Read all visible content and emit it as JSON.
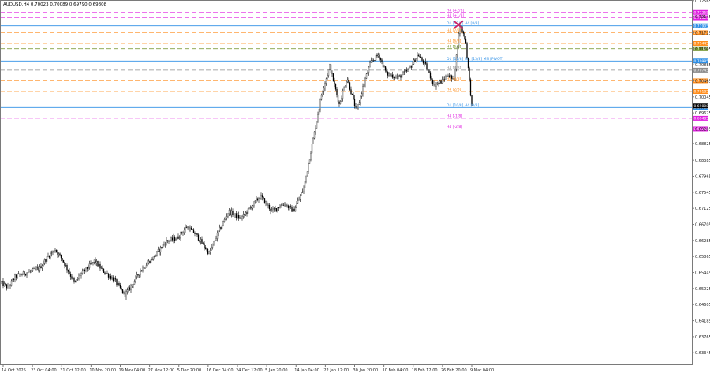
{
  "header": {
    "symbol_info": "AUDUSD,H4  0.70023 0.70089 0.69790 0.69808"
  },
  "colors": {
    "background": "#ffffff",
    "frame": "#7a7a7a",
    "bull_candle": "#000000",
    "bear_candle": "#000000",
    "blue_line": "#2e8fe6",
    "magenta_line": "#e020e0",
    "orange_line": "#ff8c1a",
    "olive_line": "#6b8e23",
    "grey_dash": "#8c8c8c",
    "cross_marker": "#cc2266",
    "current_price_bg": "#000000"
  },
  "chart_data": {
    "type": "candlestick",
    "ylim": [
      0.6304,
      0.7256
    ],
    "x_tick_labels": [
      "14 Oct 2025",
      "23 Oct 04:00",
      "31 Oct 12:00",
      "10 Nov 20:00",
      "19 Nov 04:00",
      "27 Nov 12:00",
      "5 Dec 20:00",
      "16 Dec 04:00",
      "24 Dec 12:00",
      "5 Jan 20:00",
      "14 Jan 04:00",
      "22 Jan 12:00",
      "30 Jan 20:00",
      "10 Feb 04:00",
      "18 Feb 12:00",
      "26 Feb 20:00",
      "9 Mar 04:00"
    ],
    "y_tick_labels": [
      "0.72565",
      "0.72145",
      "0.71725",
      "0.71305",
      "0.70885",
      "0.70465",
      "0.70045",
      "0.69625",
      "0.69205",
      "0.68825",
      "0.68385",
      "0.67965",
      "0.67545",
      "0.67125",
      "0.66705",
      "0.66285",
      "0.65865",
      "0.65445",
      "0.65025",
      "0.64605",
      "0.64185",
      "0.63765",
      "0.63345"
    ],
    "y_tick_values": [
      0.72565,
      0.72145,
      0.71725,
      0.71305,
      0.70885,
      0.70465,
      0.70045,
      0.69625,
      0.69205,
      0.68825,
      0.68385,
      0.67965,
      0.67545,
      0.67125,
      0.66705,
      0.66285,
      0.65865,
      0.65445,
      0.65025,
      0.64605,
      0.64185,
      0.63765,
      0.63345
    ],
    "anchors": [
      [
        0,
        0.652
      ],
      [
        10,
        0.6505
      ],
      [
        20,
        0.6535
      ],
      [
        35,
        0.6545
      ],
      [
        50,
        0.6555
      ],
      [
        60,
        0.6585
      ],
      [
        70,
        0.6605
      ],
      [
        80,
        0.6575
      ],
      [
        95,
        0.6515
      ],
      [
        100,
        0.6535
      ],
      [
        110,
        0.6555
      ],
      [
        120,
        0.6575
      ],
      [
        130,
        0.655
      ],
      [
        145,
        0.6525
      ],
      [
        158,
        0.6485
      ],
      [
        165,
        0.6505
      ],
      [
        180,
        0.6555
      ],
      [
        195,
        0.6585
      ],
      [
        210,
        0.6625
      ],
      [
        225,
        0.6635
      ],
      [
        237,
        0.6665
      ],
      [
        248,
        0.6645
      ],
      [
        265,
        0.6595
      ],
      [
        278,
        0.6655
      ],
      [
        290,
        0.6705
      ],
      [
        305,
        0.6685
      ],
      [
        318,
        0.6715
      ],
      [
        330,
        0.6745
      ],
      [
        345,
        0.6705
      ],
      [
        360,
        0.6725
      ],
      [
        372,
        0.6705
      ],
      [
        385,
        0.6765
      ],
      [
        398,
        0.6905
      ],
      [
        408,
        0.7015
      ],
      [
        418,
        0.7085
      ],
      [
        430,
        0.6985
      ],
      [
        440,
        0.7055
      ],
      [
        452,
        0.6965
      ],
      [
        462,
        0.7045
      ],
      [
        470,
        0.7095
      ],
      [
        480,
        0.7115
      ],
      [
        490,
        0.7065
      ],
      [
        505,
        0.7055
      ],
      [
        518,
        0.7075
      ],
      [
        530,
        0.7115
      ],
      [
        540,
        0.7085
      ],
      [
        550,
        0.7035
      ],
      [
        560,
        0.7045
      ],
      [
        568,
        0.7065
      ],
      [
        575,
        0.7045
      ],
      [
        583,
        0.7195
      ],
      [
        590,
        0.7155
      ],
      [
        598,
        0.6981
      ]
    ],
    "levels": [
      {
        "label": "H4 [+2/8]",
        "price": 0.72255,
        "color": "magenta",
        "dashed": true
      },
      {
        "label": "H4 [+1/8]",
        "price": 0.72115,
        "color": "magenta",
        "dashed": true
      },
      {
        "label": "D1 [12/8] H4 [8/8]",
        "price": 0.71905,
        "color": "blue",
        "dashed": false
      },
      {
        "label": "H4 [7/8]",
        "price": 0.71725,
        "color": "orange",
        "dashed": true
      },
      {
        "label": "H4 [6/8]",
        "price": 0.71445,
        "color": "orange",
        "dashed": true
      },
      {
        "label": "H4 [5/8]",
        "price": 0.71305,
        "color": "olive",
        "dashed": true
      },
      {
        "label": "D1 [11/8] W1 [13/8] MN [PIVOT]",
        "price": 0.70985,
        "color": "blue",
        "dashed": false
      },
      {
        "label": "H4 [4/8]",
        "price": 0.70745,
        "color": "grey",
        "dashed": true
      },
      {
        "label": "H4 [3/8]",
        "price": 0.70465,
        "color": "orange",
        "dashed": true
      },
      {
        "label": "H4 [2/8]",
        "price": 0.70185,
        "color": "orange",
        "dashed": true
      },
      {
        "label": "D1 [10/8] H4 [0/8]",
        "price": 0.69765,
        "color": "blue",
        "dashed": false
      },
      {
        "label": "H4 [-1/8]",
        "price": 0.69485,
        "color": "magenta",
        "dashed": true
      },
      {
        "label": "H4 [-2/8]",
        "price": 0.69205,
        "color": "magenta",
        "dashed": true
      }
    ],
    "current_price": 0.69808,
    "current_price_label": "0.69808",
    "cross_marker": {
      "bar": 581,
      "price": 0.71935
    }
  }
}
